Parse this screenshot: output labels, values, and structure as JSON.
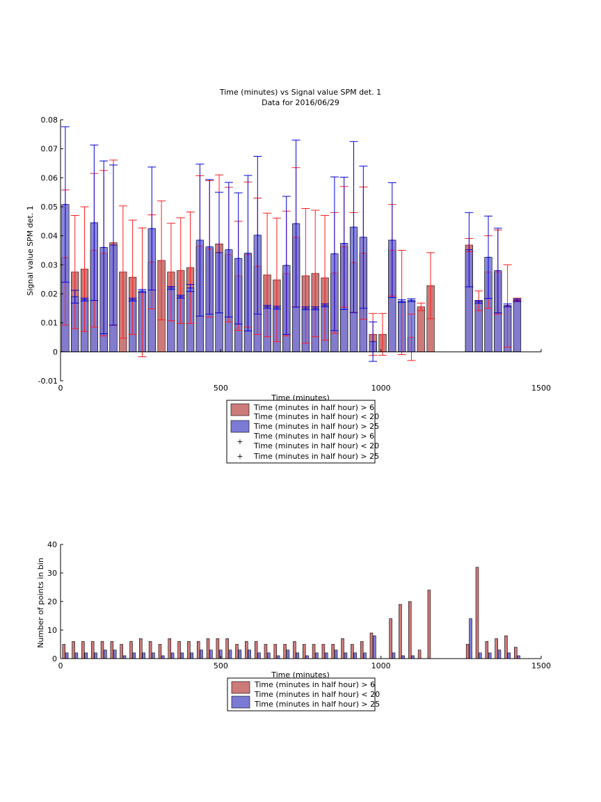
{
  "colors": {
    "red_bar": "#cd7a7a",
    "blue_bar": "#7b7bd6",
    "red_err": "#ff1a1a",
    "blue_err": "#0000dd",
    "axis": "#000000"
  },
  "chart_data": [
    {
      "type": "bar",
      "title": "Time (minutes) vs Signal value SPM det. 1",
      "subtitle": "Data for 2016/06/29",
      "xlabel": "Time (minutes)",
      "ylabel": "Signal value SPM det. 1",
      "xlim": [
        0,
        1500
      ],
      "ylim": [
        -0.01,
        0.08
      ],
      "xticks": [
        "0",
        "500",
        "1000",
        "1500"
      ],
      "yticks": [
        "-0.01",
        "0",
        "0.01",
        "0.02",
        "0.03",
        "0.04",
        "0.05",
        "0.06",
        "0.07",
        "0.08"
      ],
      "bar_width": 25,
      "grid": false,
      "legend_position": "below",
      "legend": [
        "Time (minutes in half hour) > 6",
        "Time (minutes in half hour) < 20",
        "Time (minutes in half hour) > 25",
        "Time (minutes in half hour) > 6",
        "Time (minutes in half hour) < 20",
        "Time (minutes in half hour) > 25"
      ],
      "series": [
        {
          "name": "Time (minutes in half hour) > 6 & < 20",
          "color": "red",
          "points": [
            {
              "x": 15,
              "y": 0.0325,
              "err": 0.0233
            },
            {
              "x": 45,
              "y": 0.0275,
              "err": 0.0195
            },
            {
              "x": 75,
              "y": 0.0285,
              "err": 0.0215
            },
            {
              "x": 105,
              "y": 0.035,
              "err": 0.0265
            },
            {
              "x": 135,
              "y": 0.034,
              "err": 0.0285
            },
            {
              "x": 165,
              "y": 0.0376,
              "err": 0.0285
            },
            {
              "x": 195,
              "y": 0.0275,
              "err": 0.0228
            },
            {
              "x": 225,
              "y": 0.0257,
              "err": 0.0197
            },
            {
              "x": 255,
              "y": 0.0205,
              "err": 0.0222
            },
            {
              "x": 285,
              "y": 0.031,
              "err": 0.0162
            },
            {
              "x": 315,
              "y": 0.0315,
              "err": 0.0205
            },
            {
              "x": 345,
              "y": 0.0275,
              "err": 0.0168
            },
            {
              "x": 375,
              "y": 0.028,
              "err": 0.0182
            },
            {
              "x": 405,
              "y": 0.029,
              "err": 0.0192
            },
            {
              "x": 435,
              "y": 0.0365,
              "err": 0.0242
            },
            {
              "x": 465,
              "y": 0.0355,
              "err": 0.0235
            },
            {
              "x": 495,
              "y": 0.0372,
              "err": 0.0238
            },
            {
              "x": 525,
              "y": 0.0335,
              "err": 0.0232
            },
            {
              "x": 555,
              "y": 0.0262,
              "err": 0.0188
            },
            {
              "x": 585,
              "y": 0.0335,
              "err": 0.025
            },
            {
              "x": 615,
              "y": 0.0295,
              "err": 0.0235
            },
            {
              "x": 645,
              "y": 0.0265,
              "err": 0.0213
            },
            {
              "x": 675,
              "y": 0.0248,
              "err": 0.0213
            },
            {
              "x": 705,
              "y": 0.027,
              "err": 0.0215
            },
            {
              "x": 735,
              "y": 0.0395,
              "err": 0.024
            },
            {
              "x": 765,
              "y": 0.0262,
              "err": 0.0232
            },
            {
              "x": 795,
              "y": 0.027,
              "err": 0.0218
            },
            {
              "x": 825,
              "y": 0.0255,
              "err": 0.0215
            },
            {
              "x": 855,
              "y": 0.0272,
              "err": 0.0208
            },
            {
              "x": 885,
              "y": 0.0362,
              "err": 0.0208
            },
            {
              "x": 915,
              "y": 0.0308,
              "err": 0.0172
            },
            {
              "x": 945,
              "y": 0.034,
              "err": 0.0228
            },
            {
              "x": 975,
              "y": 0.006,
              "err": 0.0072
            },
            {
              "x": 1005,
              "y": 0.006,
              "err": 0.0072
            },
            {
              "x": 1035,
              "y": 0.035,
              "err": 0.0158
            },
            {
              "x": 1065,
              "y": 0.017,
              "err": 0.018
            },
            {
              "x": 1095,
              "y": 0.005,
              "err": 0.008
            },
            {
              "x": 1125,
              "y": 0.0155,
              "err": 0.0013
            },
            {
              "x": 1155,
              "y": 0.0228,
              "err": 0.0114
            },
            {
              "x": 1275,
              "y": 0.0368,
              "err": 0.0023
            },
            {
              "x": 1305,
              "y": 0.0176,
              "err": 0.0034
            },
            {
              "x": 1335,
              "y": 0.0275,
              "err": 0.0125
            },
            {
              "x": 1365,
              "y": 0.0275,
              "err": 0.0145
            },
            {
              "x": 1395,
              "y": 0.0158,
              "err": 0.0142
            },
            {
              "x": 1425,
              "y": 0.018,
              "err": 0.0005
            }
          ]
        },
        {
          "name": "Time (minutes in half hour) > 25",
          "color": "blue",
          "points": [
            {
              "x": 15,
              "y": 0.0508,
              "err": 0.0268
            },
            {
              "x": 45,
              "y": 0.019,
              "err": 0.0022
            },
            {
              "x": 75,
              "y": 0.018,
              "err": 0.0005
            },
            {
              "x": 105,
              "y": 0.0445,
              "err": 0.0268
            },
            {
              "x": 135,
              "y": 0.036,
              "err": 0.0298
            },
            {
              "x": 165,
              "y": 0.0368,
              "err": 0.0276
            },
            {
              "x": 225,
              "y": 0.018,
              "err": 0.0005
            },
            {
              "x": 255,
              "y": 0.021,
              "err": 0.0005
            },
            {
              "x": 285,
              "y": 0.0425,
              "err": 0.0212
            },
            {
              "x": 345,
              "y": 0.022,
              "err": 0.0005
            },
            {
              "x": 375,
              "y": 0.019,
              "err": 0.0005
            },
            {
              "x": 405,
              "y": 0.022,
              "err": 0.0012
            },
            {
              "x": 435,
              "y": 0.0385,
              "err": 0.0262
            },
            {
              "x": 465,
              "y": 0.0362,
              "err": 0.0232
            },
            {
              "x": 495,
              "y": 0.0342,
              "err": 0.0208
            },
            {
              "x": 525,
              "y": 0.0352,
              "err": 0.0232
            },
            {
              "x": 555,
              "y": 0.0322,
              "err": 0.0226
            },
            {
              "x": 585,
              "y": 0.034,
              "err": 0.0268
            },
            {
              "x": 615,
              "y": 0.0402,
              "err": 0.0272
            },
            {
              "x": 645,
              "y": 0.0155,
              "err": 0.0005
            },
            {
              "x": 675,
              "y": 0.0152,
              "err": 0.0005
            },
            {
              "x": 705,
              "y": 0.0298,
              "err": 0.0238
            },
            {
              "x": 735,
              "y": 0.0442,
              "err": 0.0288
            },
            {
              "x": 765,
              "y": 0.015,
              "err": 0.0005
            },
            {
              "x": 795,
              "y": 0.015,
              "err": 0.0005
            },
            {
              "x": 825,
              "y": 0.016,
              "err": 0.0005
            },
            {
              "x": 855,
              "y": 0.0338,
              "err": 0.0265
            },
            {
              "x": 885,
              "y": 0.0374,
              "err": 0.0228
            },
            {
              "x": 915,
              "y": 0.043,
              "err": 0.0295
            },
            {
              "x": 945,
              "y": 0.0395,
              "err": 0.0245
            },
            {
              "x": 975,
              "y": 0.0035,
              "err": 0.0068
            },
            {
              "x": 1035,
              "y": 0.0385,
              "err": 0.0198
            },
            {
              "x": 1065,
              "y": 0.0175,
              "err": 0.0005
            },
            {
              "x": 1095,
              "y": 0.0178,
              "err": 0.0005
            },
            {
              "x": 1275,
              "y": 0.0352,
              "err": 0.0128
            },
            {
              "x": 1305,
              "y": 0.0172,
              "err": 0.0005
            },
            {
              "x": 1335,
              "y": 0.0326,
              "err": 0.0142
            },
            {
              "x": 1365,
              "y": 0.028,
              "err": 0.0146
            },
            {
              "x": 1395,
              "y": 0.016,
              "err": 0.0005
            },
            {
              "x": 1425,
              "y": 0.0178,
              "err": 0.0005
            }
          ]
        }
      ]
    },
    {
      "type": "bar",
      "title": "",
      "xlabel": "Time (minutes)",
      "ylabel": "Number of points in bin",
      "xlim": [
        0,
        1500
      ],
      "ylim": [
        0,
        40
      ],
      "xticks": [
        "0",
        "500",
        "1000",
        "1500"
      ],
      "yticks": [
        "0",
        "10",
        "20",
        "30",
        "40"
      ],
      "bar_width": 9,
      "grid": false,
      "legend_position": "below",
      "legend": [
        "Time (minutes in half hour) > 6",
        "Time (minutes in half hour) < 20",
        "Time (minutes in half hour) > 25"
      ],
      "x": [
        15,
        45,
        75,
        105,
        135,
        165,
        195,
        225,
        255,
        285,
        315,
        345,
        375,
        405,
        435,
        465,
        495,
        525,
        555,
        585,
        615,
        645,
        675,
        705,
        735,
        765,
        795,
        825,
        855,
        885,
        915,
        945,
        975,
        1005,
        1035,
        1065,
        1095,
        1125,
        1155,
        1185,
        1215,
        1245,
        1275,
        1305,
        1335,
        1365,
        1395,
        1425
      ],
      "series": [
        {
          "name": "Time (minutes in half hour) > 6 & < 20",
          "color": "red",
          "values": [
            5,
            6,
            6,
            6,
            6,
            6,
            5,
            6,
            7,
            6,
            5,
            7,
            6,
            6,
            6,
            7,
            7,
            7,
            5,
            6,
            6,
            5,
            5,
            5,
            6,
            5,
            5,
            5,
            5,
            7,
            5,
            6,
            9,
            0,
            14,
            19,
            20,
            3,
            24,
            0,
            0,
            0,
            5,
            32,
            6,
            7,
            8,
            4
          ]
        },
        {
          "name": "Time (minutes in half hour) > 25",
          "color": "blue",
          "values": [
            2,
            2,
            2,
            2,
            3,
            3,
            1,
            2,
            2,
            2,
            1,
            2,
            2,
            2,
            3,
            3,
            3,
            3,
            3,
            3,
            2,
            2,
            1,
            3,
            2,
            1,
            2,
            2,
            3,
            2,
            2,
            2,
            8,
            0,
            2,
            1,
            1,
            0,
            0,
            0,
            0,
            0,
            14,
            2,
            2,
            3,
            2,
            1
          ]
        }
      ]
    }
  ]
}
